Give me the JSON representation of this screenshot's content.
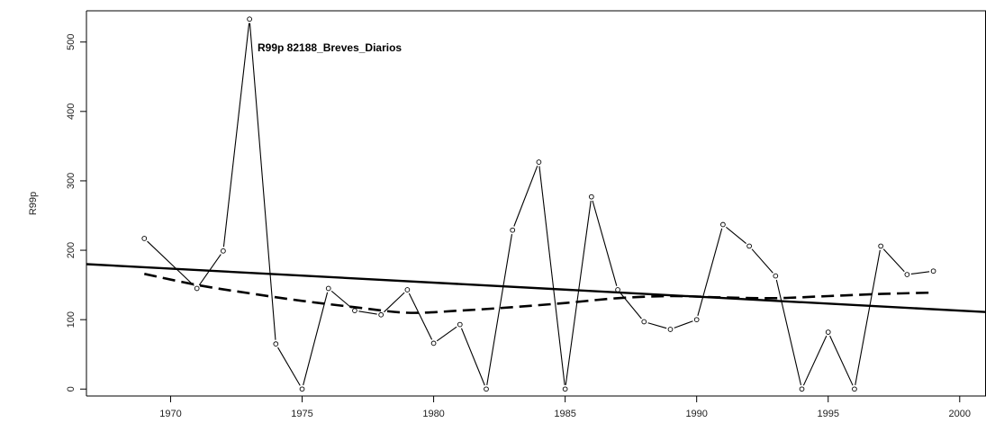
{
  "chart_data": {
    "type": "line",
    "title": "R99p   82188_Breves_Diarios",
    "xlabel": "",
    "ylabel": "R99p",
    "xlim": [
      1966.8,
      2001.0
    ],
    "ylim": [
      -10,
      545
    ],
    "x_ticks": [
      1970,
      1975,
      1980,
      1985,
      1990,
      1995,
      2000
    ],
    "y_ticks": [
      0,
      100,
      200,
      300,
      400,
      500
    ],
    "grid": false,
    "legend": "none",
    "series": [
      {
        "style": "solid-with-circles",
        "points": [
          {
            "x": 1969,
            "y": 217
          },
          {
            "x": 1971,
            "y": 145
          },
          {
            "x": 1972,
            "y": 199
          },
          {
            "x": 1973,
            "y": 533
          },
          {
            "x": 1974,
            "y": 65
          },
          {
            "x": 1975,
            "y": 0
          },
          {
            "x": 1976,
            "y": 145
          },
          {
            "x": 1977,
            "y": 113
          },
          {
            "x": 1978,
            "y": 107
          },
          {
            "x": 1979,
            "y": 143
          },
          {
            "x": 1980,
            "y": 66
          },
          {
            "x": 1981,
            "y": 93
          },
          {
            "x": 1982,
            "y": 0
          },
          {
            "x": 1983,
            "y": 229
          },
          {
            "x": 1984,
            "y": 327
          },
          {
            "x": 1985,
            "y": 0
          },
          {
            "x": 1986,
            "y": 277
          },
          {
            "x": 1987,
            "y": 143
          },
          {
            "x": 1988,
            "y": 97
          },
          {
            "x": 1989,
            "y": 86
          },
          {
            "x": 1990,
            "y": 100
          },
          {
            "x": 1991,
            "y": 237
          },
          {
            "x": 1992,
            "y": 206
          },
          {
            "x": 1993,
            "y": 163
          },
          {
            "x": 1994,
            "y": 0
          },
          {
            "x": 1995,
            "y": 82
          },
          {
            "x": 1996,
            "y": 0
          },
          {
            "x": 1997,
            "y": 206
          },
          {
            "x": 1998,
            "y": 165
          },
          {
            "x": 1999,
            "y": 170
          }
        ]
      },
      {
        "style": "solid-trend",
        "points": [
          {
            "x": 1966.8,
            "y": 180
          },
          {
            "x": 2001.0,
            "y": 111
          }
        ]
      },
      {
        "style": "dashed-smooth",
        "points": [
          {
            "x": 1969,
            "y": 166
          },
          {
            "x": 1971,
            "y": 150
          },
          {
            "x": 1973,
            "y": 138
          },
          {
            "x": 1975,
            "y": 127
          },
          {
            "x": 1977,
            "y": 118
          },
          {
            "x": 1979,
            "y": 110
          },
          {
            "x": 1981,
            "y": 113
          },
          {
            "x": 1983,
            "y": 118
          },
          {
            "x": 1985,
            "y": 124
          },
          {
            "x": 1987,
            "y": 131
          },
          {
            "x": 1989,
            "y": 134
          },
          {
            "x": 1991,
            "y": 132
          },
          {
            "x": 1993,
            "y": 131
          },
          {
            "x": 1995,
            "y": 134
          },
          {
            "x": 1997,
            "y": 137
          },
          {
            "x": 1999,
            "y": 139
          }
        ]
      }
    ]
  }
}
